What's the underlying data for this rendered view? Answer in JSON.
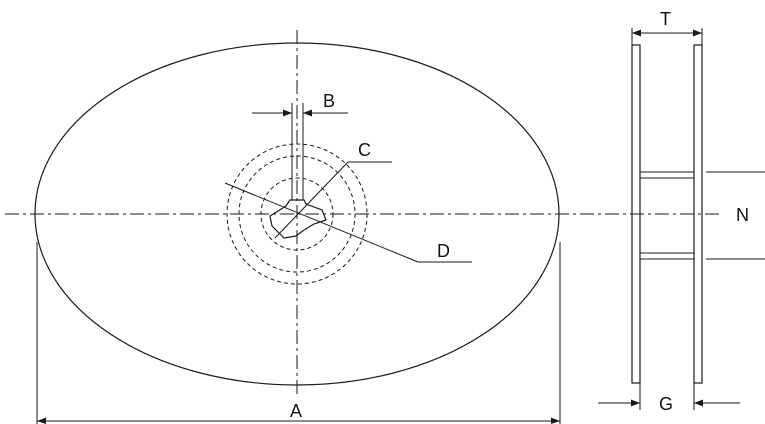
{
  "labels": {
    "A": "A",
    "B": "B",
    "C": "C",
    "D": "D",
    "T": "T",
    "N": "N",
    "G": "G"
  }
}
